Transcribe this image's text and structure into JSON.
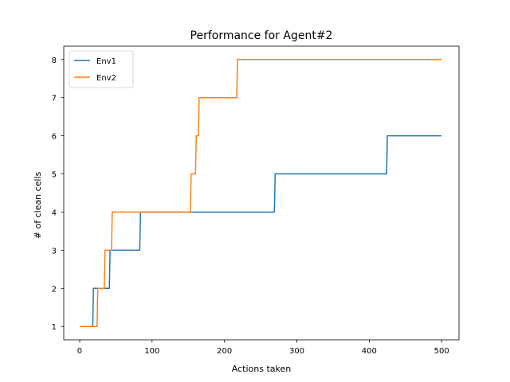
{
  "chart_data": {
    "type": "line",
    "title": "Performance for Agent#2",
    "xlabel": "Actions taken",
    "ylabel": "# of clean cells",
    "xlim": [
      -22,
      524
    ],
    "ylim": [
      0.65,
      8.35
    ],
    "xticks": [
      0,
      100,
      200,
      300,
      400,
      500
    ],
    "yticks": [
      1,
      2,
      3,
      4,
      5,
      6,
      7,
      8
    ],
    "grid": false,
    "legend_position": "top-left",
    "series": [
      {
        "name": "Env1",
        "color": "#1f77b4",
        "x": [
          0,
          18,
          19,
          41,
          42,
          83,
          84,
          269,
          270,
          424,
          425,
          500
        ],
        "y": [
          1,
          1,
          2,
          2,
          3,
          3,
          4,
          4,
          5,
          5,
          6,
          6
        ]
      },
      {
        "name": "Env2",
        "color": "#ff7f0e",
        "x": [
          0,
          24,
          25,
          34,
          35,
          44,
          45,
          153,
          154,
          160,
          161,
          164,
          165,
          217,
          218,
          500
        ],
        "y": [
          1,
          1,
          2,
          2,
          3,
          3,
          4,
          4,
          5,
          5,
          6,
          6,
          7,
          7,
          8,
          8
        ]
      }
    ]
  }
}
